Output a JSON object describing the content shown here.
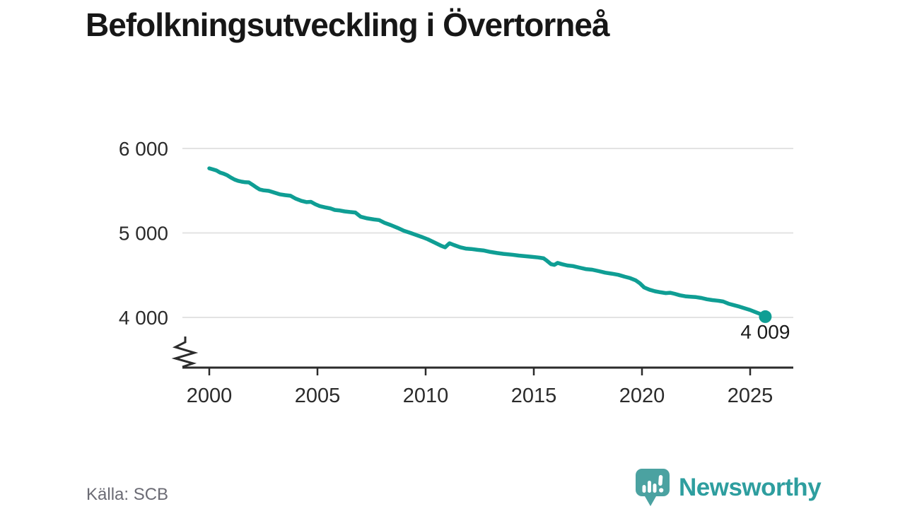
{
  "header": {
    "title": "Befolkningsutveckling i Övertorneå"
  },
  "footer": {
    "source": "Källa: SCB",
    "brand": {
      "name": "Newsworthy",
      "icon": "speech-bubble-bar-chart"
    }
  },
  "colors": {
    "accent": "#0f9e94",
    "grid": "#e3e3e3",
    "axis": "#2b2b2b",
    "tick_label": "#2b2b2b",
    "annotation": "#1a1a1a",
    "source_text": "#6b6b74",
    "brand_text": "#2e9e9f",
    "brand_bubble": "#4ba2a1"
  },
  "chart_data": {
    "type": "line",
    "title": "Befolkningsutveckling i Övertorneå",
    "xlabel": "",
    "ylabel": "",
    "grid": "horizontal",
    "axis_break": true,
    "legend": "none",
    "xlim": [
      1998.8,
      2027.0
    ],
    "ylim_visible": [
      3900,
      6050
    ],
    "x_ticks": [
      {
        "value": 2000,
        "label": "2000"
      },
      {
        "value": 2005,
        "label": "2005"
      },
      {
        "value": 2010,
        "label": "2010"
      },
      {
        "value": 2015,
        "label": "2015"
      },
      {
        "value": 2020,
        "label": "2020"
      },
      {
        "value": 2025,
        "label": "2025"
      }
    ],
    "y_ticks": [
      {
        "value": 6000,
        "label": "6 000"
      },
      {
        "value": 5000,
        "label": "5 000"
      },
      {
        "value": 4000,
        "label": "4 000"
      }
    ],
    "end_label": "4 009",
    "end_value": 4009,
    "series": [
      {
        "name": "Befolkning",
        "color": "#0f9e94",
        "points": [
          [
            2000.0,
            5765
          ],
          [
            2000.17,
            5752
          ],
          [
            2000.33,
            5740
          ],
          [
            2000.5,
            5715
          ],
          [
            2000.67,
            5700
          ],
          [
            2000.83,
            5683
          ],
          [
            2001.0,
            5655
          ],
          [
            2001.17,
            5632
          ],
          [
            2001.33,
            5617
          ],
          [
            2001.5,
            5607
          ],
          [
            2001.67,
            5600
          ],
          [
            2001.83,
            5598
          ],
          [
            2002.0,
            5570
          ],
          [
            2002.17,
            5540
          ],
          [
            2002.33,
            5515
          ],
          [
            2002.5,
            5505
          ],
          [
            2002.75,
            5498
          ],
          [
            2003.0,
            5478
          ],
          [
            2003.25,
            5458
          ],
          [
            2003.5,
            5448
          ],
          [
            2003.75,
            5440
          ],
          [
            2004.0,
            5405
          ],
          [
            2004.25,
            5380
          ],
          [
            2004.5,
            5365
          ],
          [
            2004.7,
            5368
          ],
          [
            2004.9,
            5340
          ],
          [
            2005.1,
            5318
          ],
          [
            2005.35,
            5303
          ],
          [
            2005.6,
            5290
          ],
          [
            2005.8,
            5272
          ],
          [
            2006.0,
            5267
          ],
          [
            2006.25,
            5255
          ],
          [
            2006.5,
            5248
          ],
          [
            2006.75,
            5242
          ],
          [
            2007.0,
            5192
          ],
          [
            2007.3,
            5172
          ],
          [
            2007.6,
            5160
          ],
          [
            2007.85,
            5152
          ],
          [
            2008.1,
            5120
          ],
          [
            2008.4,
            5092
          ],
          [
            2008.7,
            5060
          ],
          [
            2009.0,
            5025
          ],
          [
            2009.3,
            5000
          ],
          [
            2009.6,
            4972
          ],
          [
            2009.85,
            4950
          ],
          [
            2010.1,
            4925
          ],
          [
            2010.4,
            4888
          ],
          [
            2010.7,
            4850
          ],
          [
            2010.9,
            4830
          ],
          [
            2011.1,
            4878
          ],
          [
            2011.3,
            4858
          ],
          [
            2011.6,
            4830
          ],
          [
            2011.85,
            4815
          ],
          [
            2012.1,
            4810
          ],
          [
            2012.4,
            4800
          ],
          [
            2012.7,
            4792
          ],
          [
            2013.0,
            4775
          ],
          [
            2013.3,
            4762
          ],
          [
            2013.6,
            4752
          ],
          [
            2014.0,
            4742
          ],
          [
            2014.3,
            4732
          ],
          [
            2014.6,
            4725
          ],
          [
            2014.9,
            4718
          ],
          [
            2015.2,
            4710
          ],
          [
            2015.45,
            4700
          ],
          [
            2015.6,
            4672
          ],
          [
            2015.8,
            4630
          ],
          [
            2015.95,
            4622
          ],
          [
            2016.1,
            4645
          ],
          [
            2016.3,
            4630
          ],
          [
            2016.55,
            4615
          ],
          [
            2016.8,
            4608
          ],
          [
            2017.1,
            4590
          ],
          [
            2017.4,
            4572
          ],
          [
            2017.7,
            4565
          ],
          [
            2018.0,
            4548
          ],
          [
            2018.3,
            4530
          ],
          [
            2018.6,
            4518
          ],
          [
            2018.9,
            4505
          ],
          [
            2019.2,
            4482
          ],
          [
            2019.45,
            4465
          ],
          [
            2019.7,
            4440
          ],
          [
            2019.9,
            4405
          ],
          [
            2020.1,
            4355
          ],
          [
            2020.35,
            4328
          ],
          [
            2020.6,
            4310
          ],
          [
            2020.85,
            4298
          ],
          [
            2021.1,
            4288
          ],
          [
            2021.3,
            4292
          ],
          [
            2021.5,
            4280
          ],
          [
            2021.75,
            4262
          ],
          [
            2022.0,
            4250
          ],
          [
            2022.25,
            4245
          ],
          [
            2022.5,
            4240
          ],
          [
            2022.75,
            4230
          ],
          [
            2023.0,
            4215
          ],
          [
            2023.25,
            4205
          ],
          [
            2023.5,
            4198
          ],
          [
            2023.75,
            4188
          ],
          [
            2024.0,
            4162
          ],
          [
            2024.25,
            4145
          ],
          [
            2024.5,
            4128
          ],
          [
            2024.75,
            4108
          ],
          [
            2025.0,
            4088
          ],
          [
            2025.2,
            4068
          ],
          [
            2025.4,
            4048
          ],
          [
            2025.55,
            4030
          ],
          [
            2025.7,
            4009
          ]
        ]
      }
    ]
  }
}
